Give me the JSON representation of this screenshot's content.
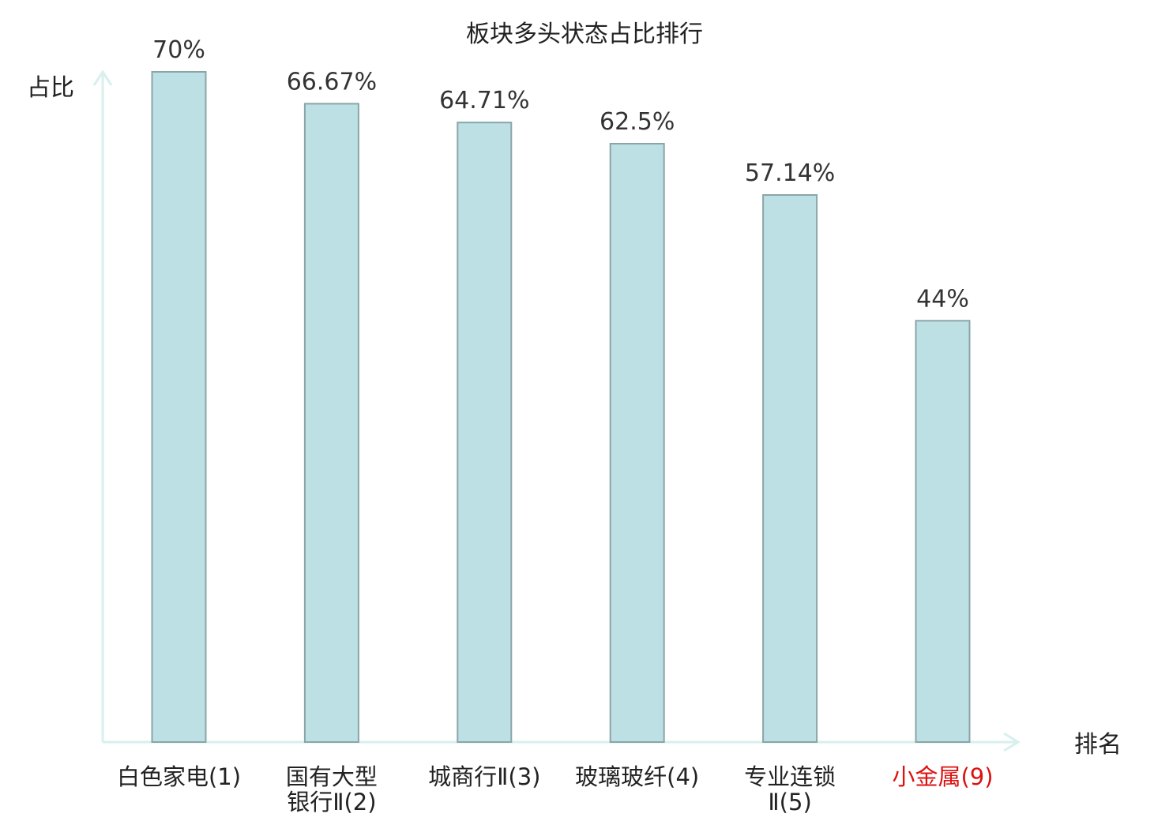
{
  "chart_data": {
    "type": "bar",
    "title": "板块多头状态占比排行",
    "ylabel": "占比",
    "xlabel": "排名",
    "ylim": [
      0,
      70
    ],
    "grid": false,
    "legend": "none",
    "categories": [
      [
        "白色家电(1)"
      ],
      [
        "国有大型",
        "银行Ⅱ(2)"
      ],
      [
        "城商行Ⅱ(3)"
      ],
      [
        "玻璃玻纤(4)"
      ],
      [
        "专业连锁",
        "Ⅱ(5)"
      ],
      [
        "小金属(9)"
      ]
    ],
    "values": [
      70,
      66.67,
      64.71,
      62.5,
      57.14,
      44
    ],
    "value_labels": [
      "70%",
      "66.67%",
      "64.71%",
      "62.5%",
      "57.14%",
      "44%"
    ],
    "highlight_index": 5
  },
  "colors": {
    "bar_fill": "#bce0e3",
    "bar_stroke": "#8aa5a8",
    "axis": "#d8efee",
    "text": "#222222",
    "highlight_text": "#dd1111"
  }
}
